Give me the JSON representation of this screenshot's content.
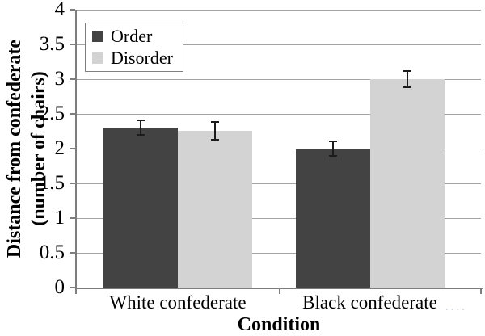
{
  "chart_data": {
    "type": "bar",
    "title": "",
    "xlabel": "Condition",
    "ylabel": "Distance from confederate (number of chairs)",
    "ylabel_lines": [
      "Distance from confederate",
      "(number of chairs)"
    ],
    "categories": [
      "White confederate",
      "Black confederate"
    ],
    "series": [
      {
        "name": "Order",
        "color": "#434343",
        "values": [
          2.3,
          2.0
        ],
        "errors": [
          0.1,
          0.1
        ]
      },
      {
        "name": "Disorder",
        "color": "#d3d3d3",
        "values": [
          2.25,
          3.0
        ],
        "errors": [
          0.13,
          0.12
        ]
      }
    ],
    "ylim": [
      0,
      4
    ],
    "yticks": [
      0,
      0.5,
      1,
      1.5,
      2,
      2.5,
      3,
      3.5,
      4
    ],
    "ytick_labels": [
      "0",
      "0.5",
      "1",
      "1.5",
      "2",
      "2.5",
      "3",
      "3.5",
      "4"
    ],
    "grid": true,
    "legend_position": "top-left",
    "error_bars": true
  },
  "colors": {
    "order_bar": "#434343",
    "disorder_bar": "#d3d3d3",
    "gridline": "#a3a3a3",
    "axis": "#7d7d7d",
    "error_bar": "#1c1c1c",
    "legend_border": "#7f7f7f",
    "background": "#ffffff",
    "text": "#000000",
    "faint_dots": "#ccd3db"
  },
  "artifact": {
    "faint_dots_text": "...."
  }
}
